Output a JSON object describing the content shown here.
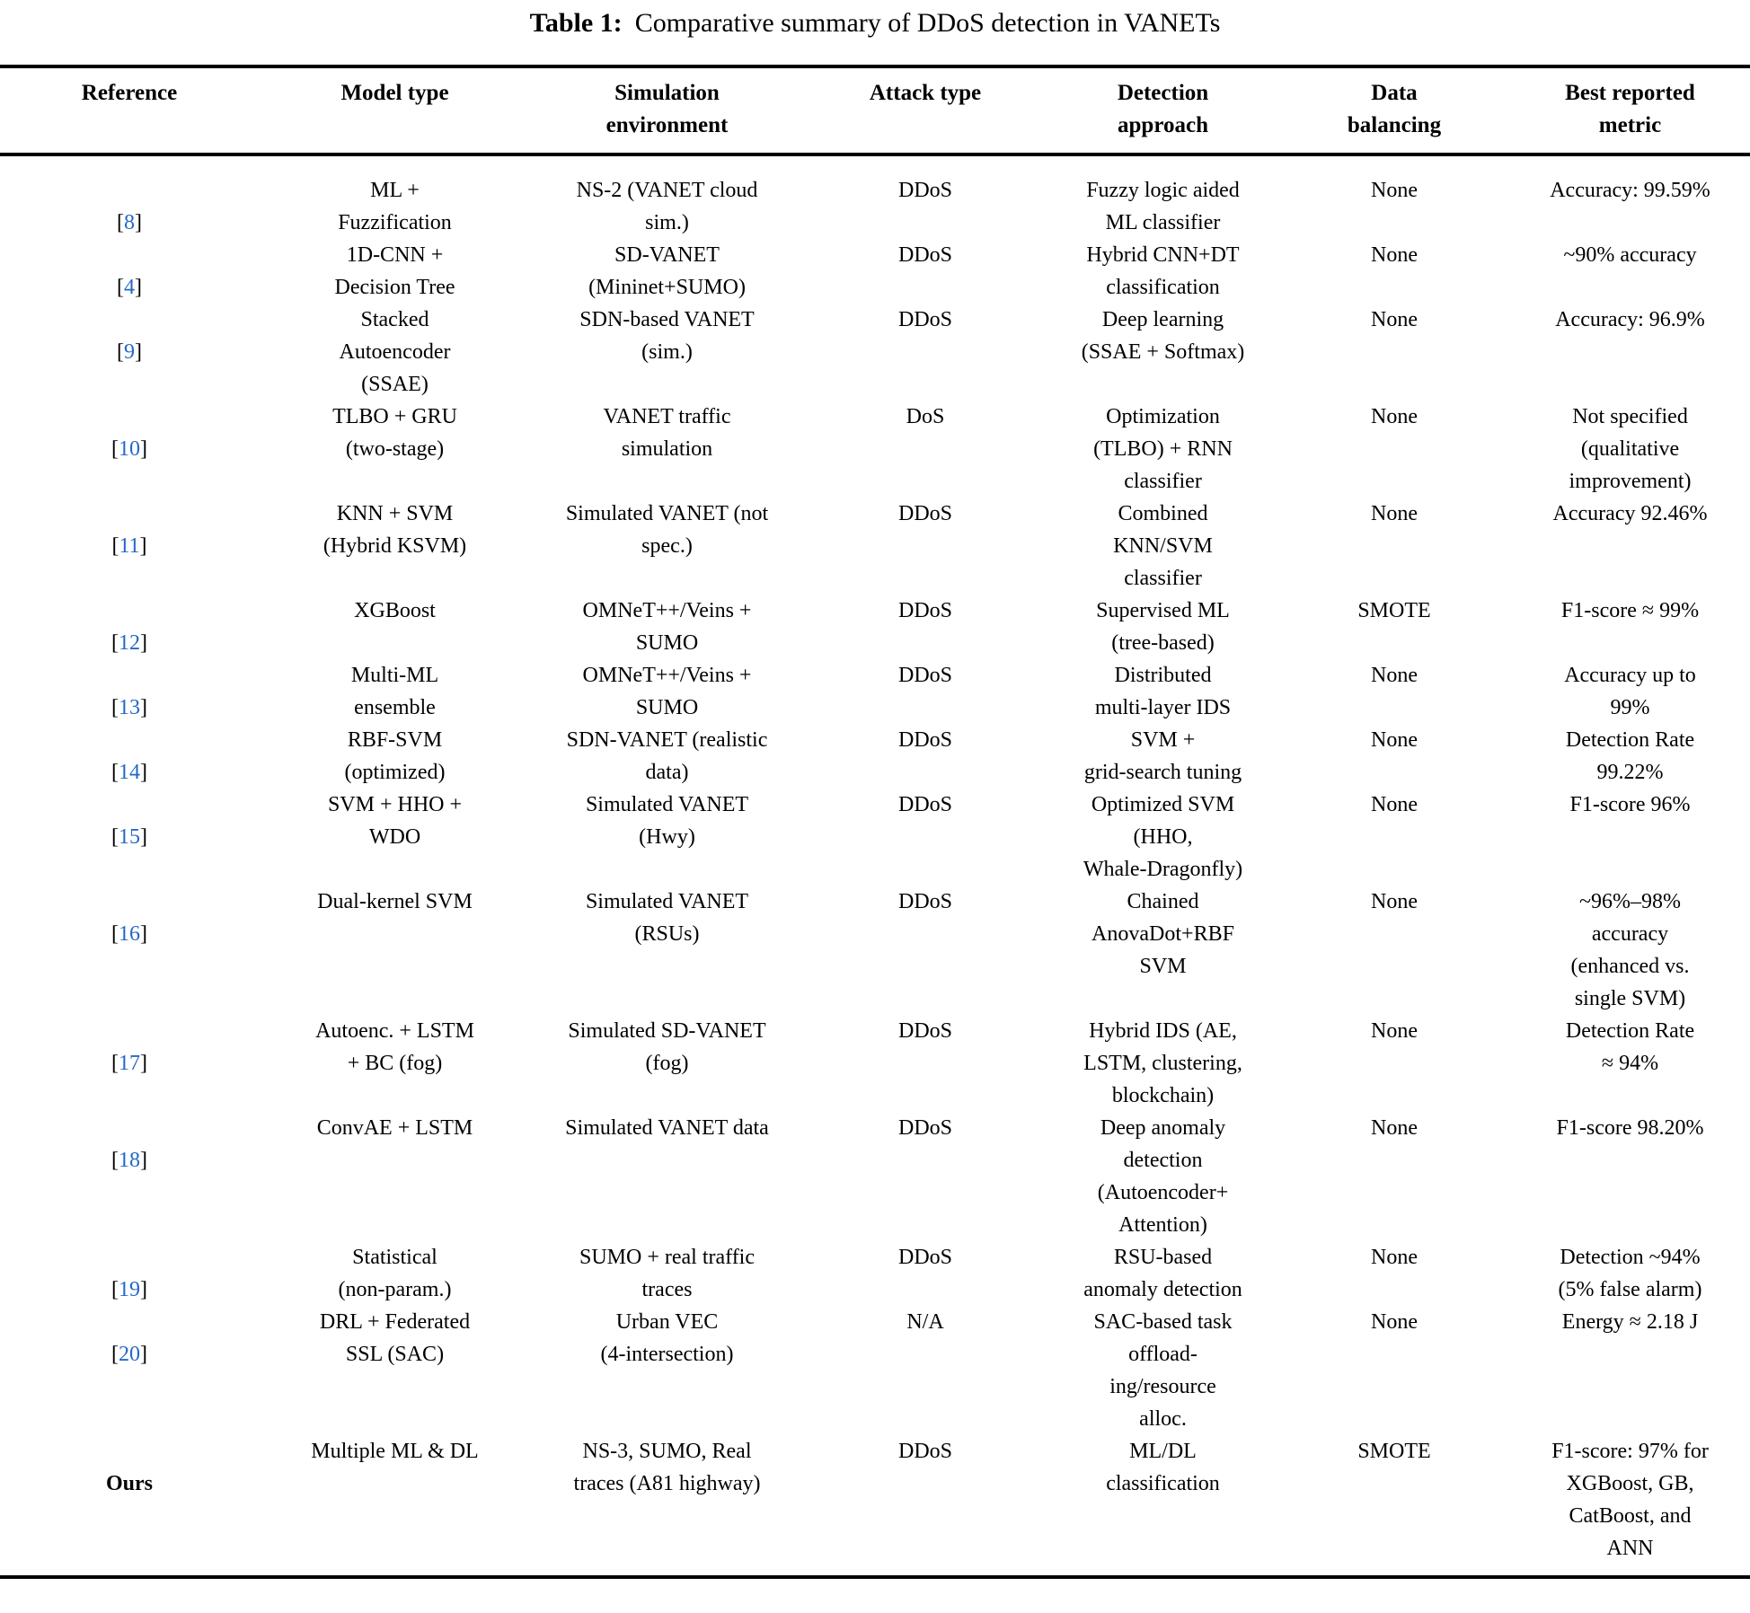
{
  "title": {
    "label": "Table 1:",
    "caption": "Comparative summary of DDoS detection in VANETs"
  },
  "colors": {
    "reference_link": "#2368c8",
    "text": "#000000",
    "rule": "#000000"
  },
  "punctuation": {
    "citation_open": "[",
    "citation_close": "]"
  },
  "table": {
    "column_headers": [
      "Reference",
      "Model type",
      "Simulation\nenvironment",
      "Attack type",
      "Detection\napproach",
      "Data\nbalancing",
      "Best reported\nmetric"
    ],
    "rows": [
      {
        "reference": "8",
        "reference_is_link": true,
        "model_type": "ML +\nFuzzification",
        "simulation_environment": "NS-2 (VANET cloud\nsim.)",
        "attack_type": "DDoS",
        "detection_approach": "Fuzzy logic aided\nML classifier",
        "data_balancing": "None",
        "best_metric": "Accuracy: 99.59%"
      },
      {
        "reference": "4",
        "reference_is_link": true,
        "model_type": "1D-CNN +\nDecision Tree",
        "simulation_environment": "SD-VANET\n(Mininet+SUMO)",
        "attack_type": "DDoS",
        "detection_approach": "Hybrid CNN+DT\nclassification",
        "data_balancing": "None",
        "best_metric": "~90% accuracy"
      },
      {
        "reference": "9",
        "reference_is_link": true,
        "model_type": "Stacked\nAutoencoder\n(SSAE)",
        "simulation_environment": "SDN-based VANET\n(sim.)",
        "attack_type": "DDoS",
        "detection_approach": "Deep learning\n(SSAE + Softmax)",
        "data_balancing": "None",
        "best_metric": "Accuracy: 96.9%"
      },
      {
        "reference": "10",
        "reference_is_link": true,
        "model_type": "TLBO + GRU\n(two-stage)",
        "simulation_environment": "VANET traffic\nsimulation",
        "attack_type": "DoS",
        "detection_approach": "Optimization\n(TLBO) + RNN\nclassifier",
        "data_balancing": "None",
        "best_metric": "Not specified\n(qualitative\nimprovement)"
      },
      {
        "reference": "11",
        "reference_is_link": true,
        "model_type": "KNN + SVM\n(Hybrid KSVM)",
        "simulation_environment": "Simulated VANET (not\nspec.)",
        "attack_type": "DDoS",
        "detection_approach": "Combined\nKNN/SVM\nclassifier",
        "data_balancing": "None",
        "best_metric": "Accuracy 92.46%"
      },
      {
        "reference": "12",
        "reference_is_link": true,
        "model_type": "XGBoost",
        "simulation_environment": "OMNeT++/Veins +\nSUMO",
        "attack_type": "DDoS",
        "detection_approach": "Supervised ML\n(tree-based)",
        "data_balancing": "SMOTE",
        "best_metric": "F1-score ≈ 99%"
      },
      {
        "reference": "13",
        "reference_is_link": true,
        "model_type": "Multi-ML\nensemble",
        "simulation_environment": "OMNeT++/Veins +\nSUMO",
        "attack_type": "DDoS",
        "detection_approach": "Distributed\nmulti-layer IDS",
        "data_balancing": "None",
        "best_metric": "Accuracy up to\n99%"
      },
      {
        "reference": "14",
        "reference_is_link": true,
        "model_type": "RBF-SVM\n(optimized)",
        "simulation_environment": "SDN-VANET (realistic\ndata)",
        "attack_type": "DDoS",
        "detection_approach": "SVM +\ngrid-search tuning",
        "data_balancing": "None",
        "best_metric": "Detection Rate\n99.22%"
      },
      {
        "reference": "15",
        "reference_is_link": true,
        "model_type": "SVM + HHO +\nWDO",
        "simulation_environment": "Simulated VANET\n(Hwy)",
        "attack_type": "DDoS",
        "detection_approach": "Optimized SVM\n(HHO,\nWhale-Dragonfly)",
        "data_balancing": "None",
        "best_metric": "F1-score 96%"
      },
      {
        "reference": "16",
        "reference_is_link": true,
        "model_type": "Dual-kernel SVM",
        "simulation_environment": "Simulated VANET\n(RSUs)",
        "attack_type": "DDoS",
        "detection_approach": "Chained\nAnovaDot+RBF\nSVM",
        "data_balancing": "None",
        "best_metric": "~96%–98%\naccuracy\n(enhanced vs.\nsingle SVM)"
      },
      {
        "reference": "17",
        "reference_is_link": true,
        "model_type": "Autoenc. + LSTM\n+ BC (fog)",
        "simulation_environment": "Simulated SD-VANET\n(fog)",
        "attack_type": "DDoS",
        "detection_approach": "Hybrid IDS (AE,\nLSTM, clustering,\nblockchain)",
        "data_balancing": "None",
        "best_metric": "Detection Rate\n≈ 94%"
      },
      {
        "reference": "18",
        "reference_is_link": true,
        "model_type": "ConvAE + LSTM",
        "simulation_environment": "Simulated VANET data",
        "attack_type": "DDoS",
        "detection_approach": "Deep anomaly\ndetection\n(Autoencoder+\nAttention)",
        "data_balancing": "None",
        "best_metric": "F1-score 98.20%"
      },
      {
        "reference": "19",
        "reference_is_link": true,
        "model_type": "Statistical\n(non-param.)",
        "simulation_environment": "SUMO + real traffic\ntraces",
        "attack_type": "DDoS",
        "detection_approach": "RSU-based\nanomaly detection",
        "data_balancing": "None",
        "best_metric": "Detection ~94%\n(5% false alarm)"
      },
      {
        "reference": "20",
        "reference_is_link": true,
        "model_type": "DRL + Federated\nSSL (SAC)",
        "simulation_environment": "Urban VEC\n(4-intersection)",
        "attack_type": "N/A",
        "detection_approach": "SAC-based task\noffload-\ning/resource\nalloc.",
        "data_balancing": "None",
        "best_metric": "Energy ≈ 2.18 J"
      },
      {
        "reference": "Ours",
        "reference_is_link": false,
        "model_type": "Multiple ML & DL",
        "simulation_environment": "NS-3, SUMO, Real\ntraces (A81 highway)",
        "attack_type": "DDoS",
        "detection_approach": "ML/DL\nclassification",
        "data_balancing": "SMOTE",
        "best_metric": "F1-score: 97% for\nXGBoost, GB,\nCatBoost, and\nANN"
      }
    ]
  }
}
